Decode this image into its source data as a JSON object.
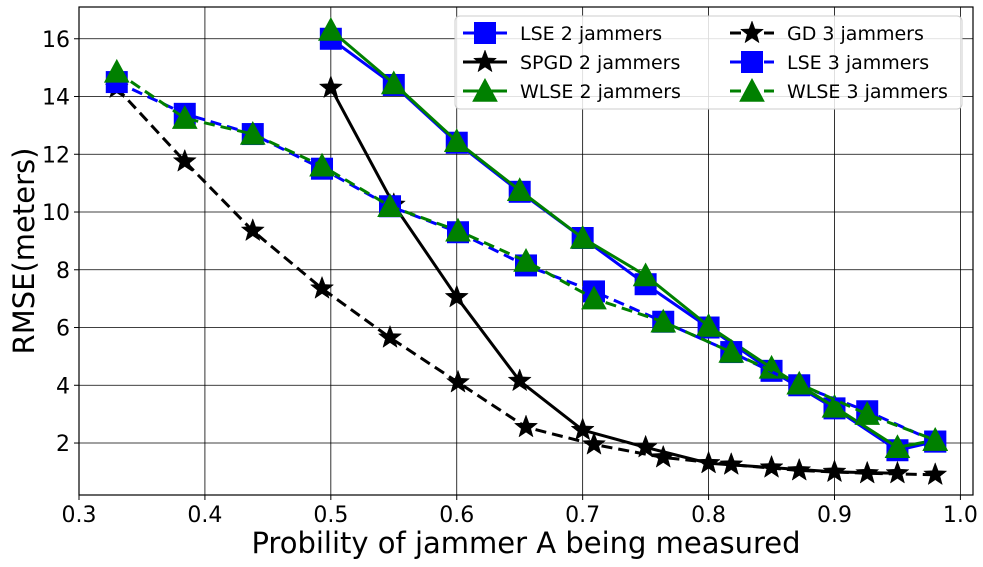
{
  "chart_data": {
    "type": "line",
    "title": "",
    "xlabel": "Probility of jammer A being measured",
    "ylabel": "RMSE(meters)",
    "xlim": [
      0.3,
      1.01
    ],
    "ylim": [
      0.2,
      17.1
    ],
    "xticks": [
      0.3,
      0.4,
      0.5,
      0.6,
      0.7,
      0.8,
      0.9,
      1.0
    ],
    "xtick_labels": [
      "0.3",
      "0.4",
      "0.5",
      "0.6",
      "0.7",
      "0.8",
      "0.9",
      "1.0"
    ],
    "yticks": [
      2,
      4,
      6,
      8,
      10,
      12,
      14,
      16
    ],
    "ytick_labels": [
      "2",
      "4",
      "6",
      "8",
      "10",
      "12",
      "14",
      "16"
    ],
    "grid": true,
    "legend_position": "top-right",
    "series": [
      {
        "name": "LSE 2 jammers",
        "color": "#0000ff",
        "linestyle": "solid",
        "marker": "square",
        "x": [
          0.5,
          0.55,
          0.6,
          0.65,
          0.7,
          0.75,
          0.8,
          0.85,
          0.9,
          0.95,
          0.98
        ],
        "y": [
          16.0,
          14.4,
          12.4,
          10.7,
          9.1,
          7.5,
          6.0,
          4.5,
          3.2,
          1.75,
          2.05
        ]
      },
      {
        "name": "SPGD 2 jammers",
        "color": "#000000",
        "linestyle": "solid",
        "marker": "star",
        "x": [
          0.5,
          0.55,
          0.6,
          0.65,
          0.7,
          0.75,
          0.8,
          0.85,
          0.9,
          0.95
        ],
        "y": [
          14.3,
          10.25,
          7.05,
          4.15,
          2.45,
          1.85,
          1.3,
          1.15,
          1.0,
          0.95
        ]
      },
      {
        "name": "WLSE 2 jammers",
        "color": "#008000",
        "linestyle": "solid",
        "marker": "triangle",
        "x": [
          0.5,
          0.55,
          0.6,
          0.65,
          0.7,
          0.75,
          0.8,
          0.85,
          0.9,
          0.95,
          0.98
        ],
        "y": [
          16.3,
          14.45,
          12.45,
          10.75,
          9.1,
          7.8,
          6.05,
          4.6,
          3.25,
          1.85,
          2.1
        ]
      },
      {
        "name": "GD 3 jammers",
        "color": "#000000",
        "linestyle": "dashed",
        "marker": "star",
        "x": [
          0.33,
          0.384,
          0.438,
          0.493,
          0.547,
          0.601,
          0.655,
          0.709,
          0.764,
          0.818,
          0.872,
          0.926,
          0.98
        ],
        "y": [
          14.3,
          11.75,
          9.35,
          7.35,
          5.65,
          4.1,
          2.55,
          1.95,
          1.5,
          1.25,
          1.05,
          0.95,
          0.9
        ]
      },
      {
        "name": "LSE 3 jammers",
        "color": "#0000ff",
        "linestyle": "dashed",
        "marker": "square",
        "x": [
          0.33,
          0.384,
          0.438,
          0.493,
          0.547,
          0.601,
          0.655,
          0.709,
          0.764,
          0.818,
          0.872,
          0.926,
          0.98
        ],
        "y": [
          14.5,
          13.4,
          12.7,
          11.5,
          10.2,
          9.3,
          8.15,
          7.25,
          6.2,
          5.15,
          4.0,
          3.1,
          2.05
        ]
      },
      {
        "name": "WLSE 3 jammers",
        "color": "#008000",
        "linestyle": "dashed",
        "marker": "triangle",
        "x": [
          0.33,
          0.384,
          0.438,
          0.493,
          0.547,
          0.601,
          0.655,
          0.709,
          0.764,
          0.818,
          0.872,
          0.926,
          0.98
        ],
        "y": [
          14.85,
          13.25,
          12.7,
          11.6,
          10.2,
          9.35,
          8.3,
          7.0,
          6.2,
          5.15,
          4.05,
          3.0,
          2.1
        ]
      }
    ]
  }
}
